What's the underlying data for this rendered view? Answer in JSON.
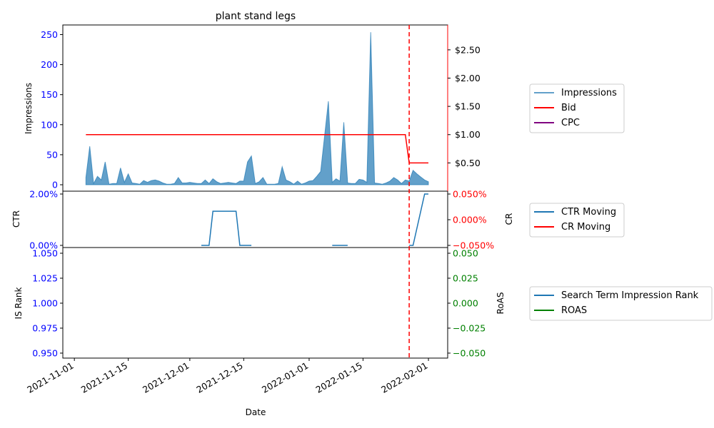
{
  "chart_data": [
    {
      "type": "area",
      "title": "plant stand legs",
      "ylabel": "Impressions",
      "y2label": "",
      "ylim": [
        0,
        266
      ],
      "y2lim": [
        0,
        2.94
      ],
      "yticks": [
        0,
        50,
        100,
        150,
        200,
        250
      ],
      "y2tick_labels": [
        "$0.50",
        "$1.00",
        "$1.50",
        "$2.00",
        "$2.50"
      ],
      "y2ticks": [
        0.5,
        1.0,
        1.5,
        2.0,
        2.5
      ],
      "legend": [
        "Impressions",
        "Bid",
        "CPC"
      ],
      "legend_position": "right",
      "series": [
        {
          "name": "Impressions",
          "x": [
            "2021-11-04",
            "2021-11-05",
            "2021-11-06",
            "2021-11-07",
            "2021-11-08",
            "2021-11-09",
            "2021-11-10",
            "2021-11-11",
            "2021-11-12",
            "2021-11-13",
            "2021-11-14",
            "2021-11-15",
            "2021-11-16",
            "2021-11-17",
            "2021-11-18",
            "2021-11-19",
            "2021-11-20",
            "2021-11-21",
            "2021-11-22",
            "2021-11-23",
            "2021-11-24",
            "2021-11-25",
            "2021-11-26",
            "2021-11-27",
            "2021-11-28",
            "2021-11-29",
            "2021-11-30",
            "2021-12-01",
            "2021-12-02",
            "2021-12-03",
            "2021-12-04",
            "2021-12-05",
            "2021-12-06",
            "2021-12-07",
            "2021-12-08",
            "2021-12-09",
            "2021-12-10",
            "2021-12-11",
            "2021-12-12",
            "2021-12-13",
            "2021-12-14",
            "2021-12-15",
            "2021-12-16",
            "2021-12-17",
            "2021-12-18",
            "2021-12-19",
            "2021-12-20",
            "2021-12-21",
            "2021-12-22",
            "2021-12-23",
            "2021-12-24",
            "2021-12-25",
            "2021-12-26",
            "2021-12-27",
            "2021-12-28",
            "2021-12-29",
            "2021-12-30",
            "2021-12-31",
            "2022-01-01",
            "2022-01-02",
            "2022-01-03",
            "2022-01-04",
            "2022-01-05",
            "2022-01-06",
            "2022-01-07",
            "2022-01-08",
            "2022-01-09",
            "2022-01-10",
            "2022-01-11",
            "2022-01-12",
            "2022-01-13",
            "2022-01-14",
            "2022-01-15",
            "2022-01-16",
            "2022-01-17",
            "2022-01-18",
            "2022-01-19",
            "2022-01-20",
            "2022-01-21",
            "2022-01-22",
            "2022-01-23",
            "2022-01-24",
            "2022-01-25",
            "2022-01-26",
            "2022-01-27",
            "2022-01-28",
            "2022-01-29",
            "2022-01-30",
            "2022-01-31",
            "2022-02-01"
          ],
          "values": [
            12,
            64,
            2,
            14,
            8,
            38,
            1,
            2,
            2,
            28,
            4,
            18,
            3,
            2,
            1,
            7,
            4,
            7,
            8,
            6,
            3,
            1,
            1,
            2,
            12,
            3,
            3,
            4,
            3,
            2,
            2,
            8,
            2,
            10,
            5,
            2,
            3,
            4,
            3,
            2,
            6,
            6,
            38,
            48,
            2,
            5,
            12,
            1,
            1,
            1,
            2,
            30,
            8,
            5,
            1,
            6,
            1,
            3,
            6,
            7,
            14,
            22,
            80,
            139,
            4,
            10,
            6,
            104,
            3,
            2,
            2,
            9,
            8,
            4,
            254,
            3,
            2,
            1,
            3,
            6,
            12,
            8,
            2,
            8,
            6,
            24,
            18,
            13,
            8,
            5
          ]
        },
        {
          "name": "Bid",
          "x": [
            "2021-11-04",
            "2022-01-26",
            "2022-01-27",
            "2022-02-01"
          ],
          "values": [
            1.0,
            1.0,
            0.5,
            0.5
          ]
        },
        {
          "name": "CPC",
          "x": [],
          "values": []
        }
      ],
      "annotation": {
        "vline_x": "2022-01-27",
        "style": "dashed red"
      }
    },
    {
      "type": "line",
      "ylabel": "CTR",
      "y2label": "CR",
      "ylim": [
        0,
        2.0
      ],
      "ytick_labels": [
        "0.00%",
        "2.00%"
      ],
      "y2tick_labels": [
        "−0.050%",
        "0.000%",
        "0.050%"
      ],
      "legend": [
        "CTR Moving",
        "CR Moving"
      ],
      "legend_position": "right",
      "series": [
        {
          "name": "CTR Moving",
          "segments": [
            {
              "x": [
                "2021-12-04",
                "2021-12-06",
                "2021-12-07",
                "2021-12-13",
                "2021-12-14",
                "2021-12-17"
              ],
              "values": [
                0,
                0,
                1.33,
                1.33,
                0,
                0
              ]
            },
            {
              "x": [
                "2022-01-07",
                "2022-01-11"
              ],
              "values": [
                0,
                0
              ]
            },
            {
              "x": [
                "2022-01-27",
                "2022-01-28",
                "2022-01-31",
                "2022-02-01"
              ],
              "values": [
                0,
                0,
                2.0,
                2.0
              ]
            }
          ]
        },
        {
          "name": "CR Moving",
          "values": []
        }
      ]
    },
    {
      "type": "line",
      "ylabel": "IS Rank",
      "y2label": "RoAS",
      "xlabel": "Date",
      "ytick_labels": [
        "0.950",
        "0.975",
        "1.000",
        "1.025",
        "1.050"
      ],
      "y2tick_labels": [
        "−0.050",
        "−0.025",
        "0.000",
        "0.025",
        "0.050"
      ],
      "xtick_labels": [
        "2021-11-01",
        "2021-11-15",
        "2021-12-01",
        "2021-12-15",
        "2022-01-01",
        "2022-01-15",
        "2022-02-01"
      ],
      "legend": [
        "Search Term Impression Rank",
        "ROAS"
      ],
      "legend_position": "right",
      "series": [
        {
          "name": "Search Term Impression Rank",
          "values": []
        },
        {
          "name": "ROAS",
          "values": []
        }
      ]
    }
  ],
  "colors": {
    "impressions": "#1f77b4",
    "bid": "#ff0000",
    "cpc": "#800080",
    "ctr": "#1f77b4",
    "cr": "#ff0000",
    "isrank": "#1f77b4",
    "roas": "#008000",
    "left_ticks": "#0000ff",
    "right_ticks_top": "#ff0000",
    "right_ticks_bottom": "#008000"
  }
}
